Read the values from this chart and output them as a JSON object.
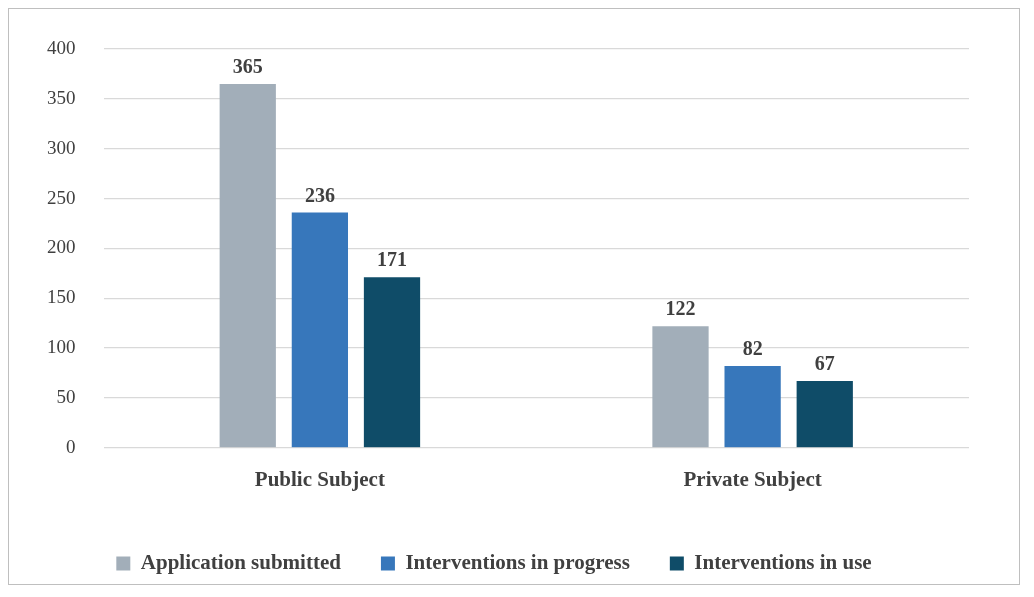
{
  "chart_data": {
    "type": "bar",
    "categories": [
      "Public Subject",
      "Private Subject"
    ],
    "series": [
      {
        "name": "Application submitted",
        "color": "#a2aeb9",
        "values": [
          365,
          122
        ]
      },
      {
        "name": "Interventions in progress",
        "color": "#3777bb",
        "values": [
          236,
          82
        ]
      },
      {
        "name": "Interventions in use",
        "color": "#0f4c68",
        "values": [
          171,
          67
        ]
      }
    ],
    "ylim": [
      0,
      400
    ],
    "yticks": [
      0,
      50,
      100,
      150,
      200,
      250,
      300,
      350,
      400
    ],
    "grid": "y",
    "legend": "bottom",
    "data_labels": true
  }
}
